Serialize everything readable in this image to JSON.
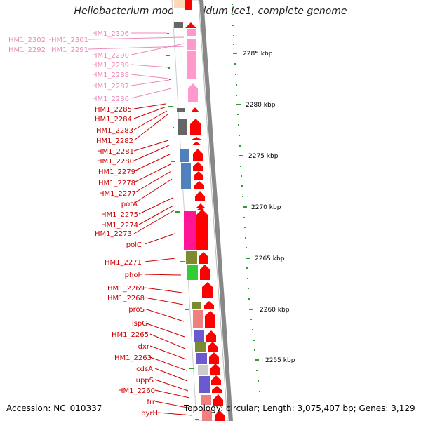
{
  "title": "Heliobacterium modesticaldum Ice1, complete genome",
  "accession": "Accession: NC_010337",
  "topology": "Topology: circular; Length: 3,075,407 bp; Genes: 3,129",
  "colors": {
    "pink_label": "#ee88bb",
    "red_label": "#cc0000",
    "tick": "#339933",
    "backbone": "#888888"
  },
  "scale_labels": [
    "2285 kbp",
    "2280 kbp",
    "2275 kbp",
    "2270 kbp",
    "2265 kbp",
    "2260 kbp",
    "2255 kbp"
  ],
  "labels_pink": [
    "HM1_2306",
    "HM1_2302",
    "HM1_2301",
    "HM1_2292",
    "HM1_2291",
    "HM1_2290",
    "HM1_2289",
    "HM1_2288",
    "HM1_2287",
    "HM1_2286"
  ],
  "labels_red": [
    "HM1_2285",
    "HM1_2284",
    "HM1_2283",
    "HM1_2282",
    "HM1_2281",
    "HM1_2280",
    "HM1_2279",
    "HM1_2278",
    "HM1_2277",
    "potA",
    "HM1_2275",
    "HM1_2274",
    "HM1_2273",
    "polC",
    "HM1_2271",
    "phoH",
    "HM1_2269",
    "HM1_2268",
    "proS",
    "ispG",
    "HM1_2265",
    "dxr",
    "HM1_2263",
    "cdsA",
    "uppS",
    "HM1_2260",
    "frr",
    "pyrH"
  ]
}
